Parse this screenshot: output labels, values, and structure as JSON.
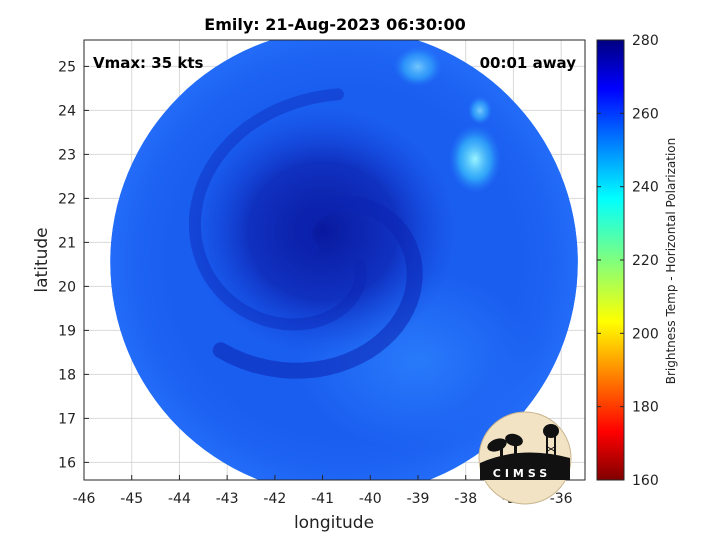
{
  "chart_data": {
    "type": "heatmap",
    "title": "Emily: 21-Aug-2023 06:30:00",
    "xlabel": "longitude",
    "ylabel": "latitude",
    "xlim": [
      -46,
      -35.5
    ],
    "ylim": [
      15.6,
      25.6
    ],
    "xticks": [
      -46,
      -45,
      -44,
      -43,
      -42,
      -41,
      -40,
      -39,
      -38,
      -37,
      -36
    ],
    "yticks": [
      16,
      17,
      18,
      19,
      20,
      21,
      22,
      23,
      24,
      25
    ],
    "grid": true,
    "annotations": {
      "vmax": "Vmax: 35 kts",
      "time_away": "00:01 away"
    },
    "colorbar": {
      "label": "Brightness Temp - Horizontal Polarization",
      "range": [
        160,
        280
      ],
      "ticks": [
        160,
        180,
        200,
        220,
        240,
        260,
        280
      ],
      "colormap": "jet"
    },
    "swath": {
      "center_lon": -40.55,
      "center_lat": 20.55,
      "radius_deg": 5.1
    },
    "storm_center": {
      "lon": -41.0,
      "lat": 20.8
    }
  },
  "logo": {
    "text": "CIMSS"
  },
  "colors": {
    "swath_base": "#1a5ef0",
    "core": "#0b1fa8",
    "cold_cloud": "#6ff0ff",
    "grid": "#d9d9d9"
  }
}
